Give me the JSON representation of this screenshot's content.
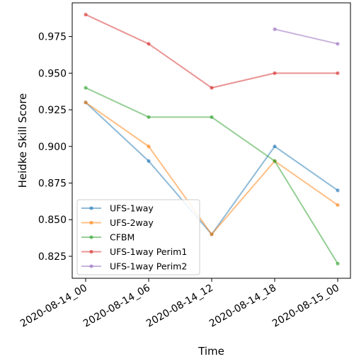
{
  "chart_data": {
    "type": "line",
    "xlabel": "Time",
    "ylabel": "Heidke Skill Score",
    "categories": [
      "2020-08-14_00",
      "2020-08-14_06",
      "2020-08-14_12",
      "2020-08-14_18",
      "2020-08-15_00"
    ],
    "ylim": [
      0.81,
      0.998
    ],
    "yticks": [
      0.825,
      0.85,
      0.875,
      0.9,
      0.925,
      0.95,
      0.975
    ],
    "ytick_labels": [
      "0.825",
      "0.850",
      "0.875",
      "0.900",
      "0.925",
      "0.950",
      "0.975"
    ],
    "grid": false,
    "legend_position": "lower-left",
    "series": [
      {
        "name": "UFS-1way",
        "color": "#1f77b4",
        "values": [
          0.93,
          0.89,
          0.84,
          0.9,
          0.87
        ]
      },
      {
        "name": "UFS-2way",
        "color": "#ff7f0e",
        "values": [
          0.93,
          0.9,
          0.84,
          0.89,
          0.86
        ]
      },
      {
        "name": "CFBM",
        "color": "#2ca02c",
        "values": [
          0.94,
          0.92,
          0.92,
          0.89,
          0.82
        ]
      },
      {
        "name": "UFS-1way Perim1",
        "color": "#d62728",
        "values": [
          0.99,
          0.97,
          0.94,
          0.95,
          0.95
        ]
      },
      {
        "name": "UFS-1way Perim2",
        "color": "#9467bd",
        "values": [
          null,
          null,
          null,
          0.98,
          0.97
        ]
      }
    ]
  }
}
